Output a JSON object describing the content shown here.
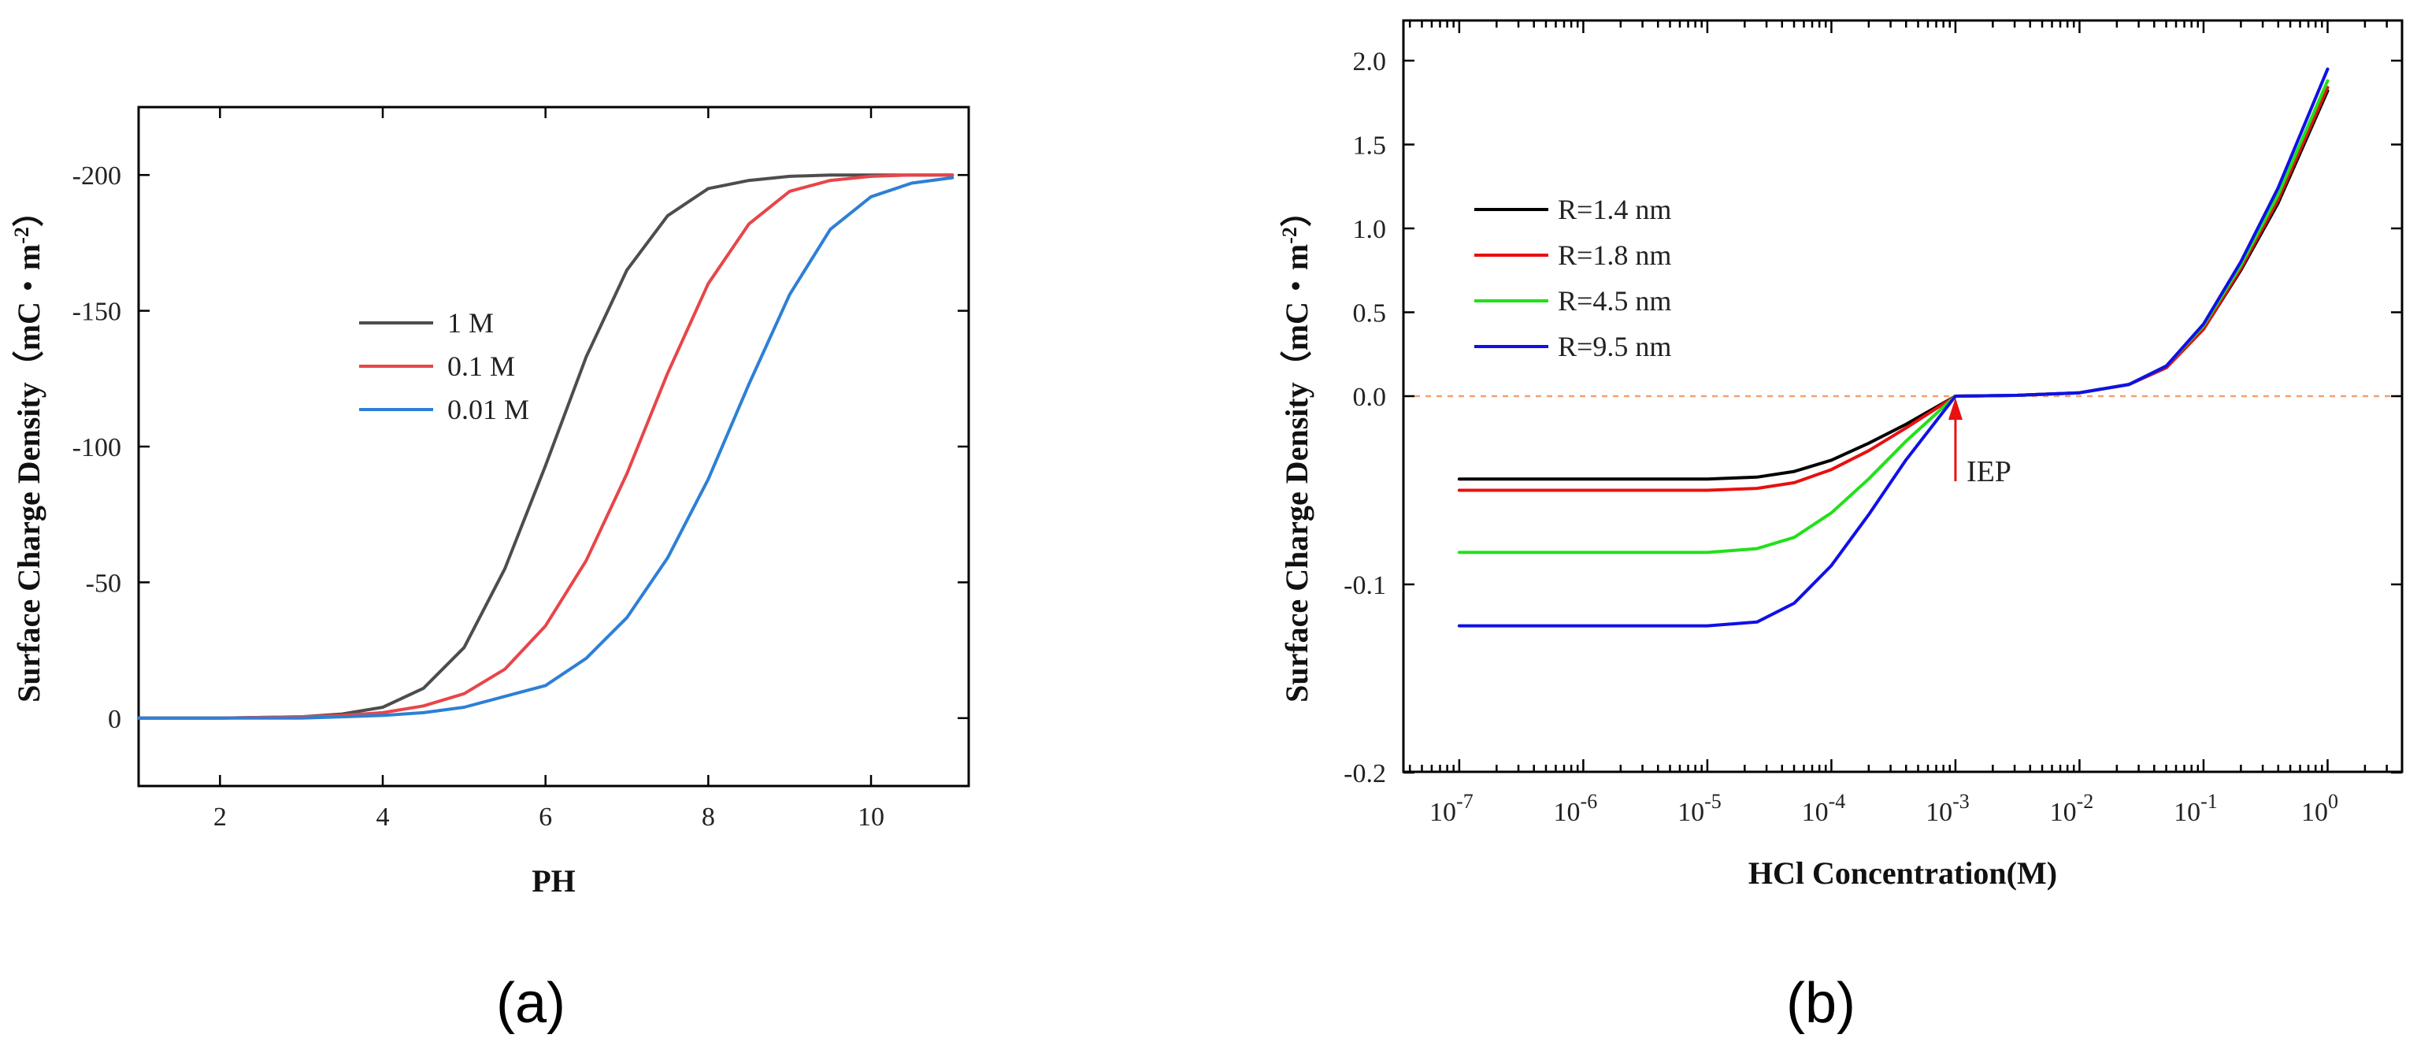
{
  "chart_data": [
    {
      "panel": "(a)",
      "type": "line",
      "xlabel": "PH",
      "ylabel": "Surface Charge Density（mC・m",
      "ylabel_sup": "-2",
      "ylabel_end": "）",
      "xlim": [
        1,
        11.2
      ],
      "ylim": [
        25,
        -225
      ],
      "xticks": [
        2,
        4,
        6,
        8,
        10
      ],
      "xtick_labels": [
        "2",
        "4",
        "6",
        "8",
        "10"
      ],
      "yticks": [
        0,
        -50,
        -100,
        -150,
        -200
      ],
      "ytick_labels": [
        "0",
        "-50",
        "-100",
        "-150",
        "-200"
      ],
      "legend_position": "center-left",
      "series": [
        {
          "name": "1 M",
          "color": "#4d4d4d",
          "x": [
            1,
            2,
            3,
            3.5,
            4,
            4.5,
            5,
            5.5,
            6,
            6.5,
            7,
            7.5,
            8,
            8.5,
            9,
            9.5,
            10,
            10.5,
            11
          ],
          "y": [
            0,
            0,
            -0.5,
            -1.5,
            -4,
            -11,
            -26,
            -55,
            -93,
            -133,
            -165,
            -185,
            -195,
            -198,
            -199.5,
            -200,
            -200,
            -200,
            -200
          ]
        },
        {
          "name": "0.1 M",
          "color": "#e8454a",
          "x": [
            1,
            2,
            3,
            3.5,
            4,
            4.5,
            5,
            5.5,
            6,
            6.5,
            7,
            7.5,
            8,
            8.5,
            9,
            9.5,
            10,
            10.5,
            11
          ],
          "y": [
            0,
            0,
            -0.5,
            -1,
            -2,
            -4.5,
            -9,
            -18,
            -34,
            -58,
            -90,
            -127,
            -160,
            -182,
            -194,
            -198,
            -199.5,
            -200,
            -200
          ]
        },
        {
          "name": "0.01 M",
          "color": "#2d7fd6",
          "x": [
            1,
            2,
            3,
            3.5,
            4,
            4.5,
            5,
            5.5,
            6,
            6.5,
            7,
            7.5,
            8,
            8.5,
            9,
            9.5,
            10,
            10.5,
            11
          ],
          "y": [
            0,
            0,
            0,
            -0.5,
            -1,
            -2,
            -4,
            -8,
            -12,
            -22,
            -37,
            -59,
            -88,
            -123,
            -156,
            -180,
            -192,
            -197,
            -199
          ]
        }
      ]
    },
    {
      "panel": "(b)",
      "type": "line",
      "xlabel": "HCl Concentration(M)",
      "ylabel": "Surface Charge Density（mC・m",
      "ylabel_sup": "-2",
      "ylabel_end": "）",
      "x_scale": "log10",
      "xlim_log10": [
        -7.45,
        0.6
      ],
      "xticks_log10": [
        -7,
        -6,
        -5,
        -4,
        -3,
        -2,
        -1,
        0
      ],
      "xtick_base": "10",
      "xtick_exponents": [
        "-7",
        "-6",
        "-5",
        "-4",
        "-3",
        "-2",
        "-1",
        "0"
      ],
      "y_scale": "broken: negative segment expanded",
      "yticks": [
        2.0,
        1.5,
        1.0,
        0.5,
        0.0,
        -0.1,
        -0.2
      ],
      "ytick_labels": [
        "2.0",
        "1.5",
        "1.0",
        "0.5",
        "0.0",
        "-0.1",
        "-0.2"
      ],
      "reference_line_y": 0,
      "annotation": {
        "text": "IEP",
        "x_log10": -3,
        "y": 0
      },
      "legend_position": "top-left",
      "series": [
        {
          "name": "R=1.4 nm",
          "color": "#000000",
          "x_log10": [
            -7,
            -5,
            -4.6,
            -4.3,
            -4,
            -3.7,
            -3.4,
            -3,
            -2.5,
            -2,
            -1.6,
            -1.3,
            -1,
            -0.7,
            -0.4,
            0
          ],
          "y": [
            -0.044,
            -0.044,
            -0.043,
            -0.04,
            -0.034,
            -0.025,
            -0.015,
            0,
            0.005,
            0.02,
            0.07,
            0.17,
            0.4,
            0.75,
            1.15,
            1.82
          ]
        },
        {
          "name": "R=1.8 nm",
          "color": "#e81010",
          "x_log10": [
            -7,
            -5,
            -4.6,
            -4.3,
            -4,
            -3.7,
            -3.4,
            -3,
            -2.5,
            -2,
            -1.6,
            -1.3,
            -1,
            -0.7,
            -0.4,
            0
          ],
          "y": [
            -0.05,
            -0.05,
            -0.049,
            -0.046,
            -0.039,
            -0.029,
            -0.017,
            0,
            0.005,
            0.02,
            0.07,
            0.17,
            0.4,
            0.76,
            1.17,
            1.84
          ]
        },
        {
          "name": "R=4.5 nm",
          "color": "#22e01a",
          "x_log10": [
            -7,
            -5,
            -4.6,
            -4.3,
            -4,
            -3.7,
            -3.4,
            -3,
            -2.5,
            -2,
            -1.6,
            -1.3,
            -1,
            -0.7,
            -0.4,
            0
          ],
          "y": [
            -0.083,
            -0.083,
            -0.081,
            -0.075,
            -0.062,
            -0.044,
            -0.024,
            0,
            0.005,
            0.02,
            0.07,
            0.18,
            0.42,
            0.78,
            1.2,
            1.88
          ]
        },
        {
          "name": "R=9.5 nm",
          "color": "#1010e8",
          "x_log10": [
            -7,
            -5,
            -4.6,
            -4.3,
            -4,
            -3.7,
            -3.4,
            -3,
            -2.5,
            -2,
            -1.6,
            -1.3,
            -1,
            -0.7,
            -0.4,
            0
          ],
          "y": [
            -0.122,
            -0.122,
            -0.12,
            -0.11,
            -0.09,
            -0.063,
            -0.034,
            0,
            0.005,
            0.02,
            0.07,
            0.18,
            0.43,
            0.8,
            1.24,
            1.95
          ]
        }
      ]
    }
  ],
  "panel_labels": {
    "a": "(a)",
    "b": "(b)"
  }
}
